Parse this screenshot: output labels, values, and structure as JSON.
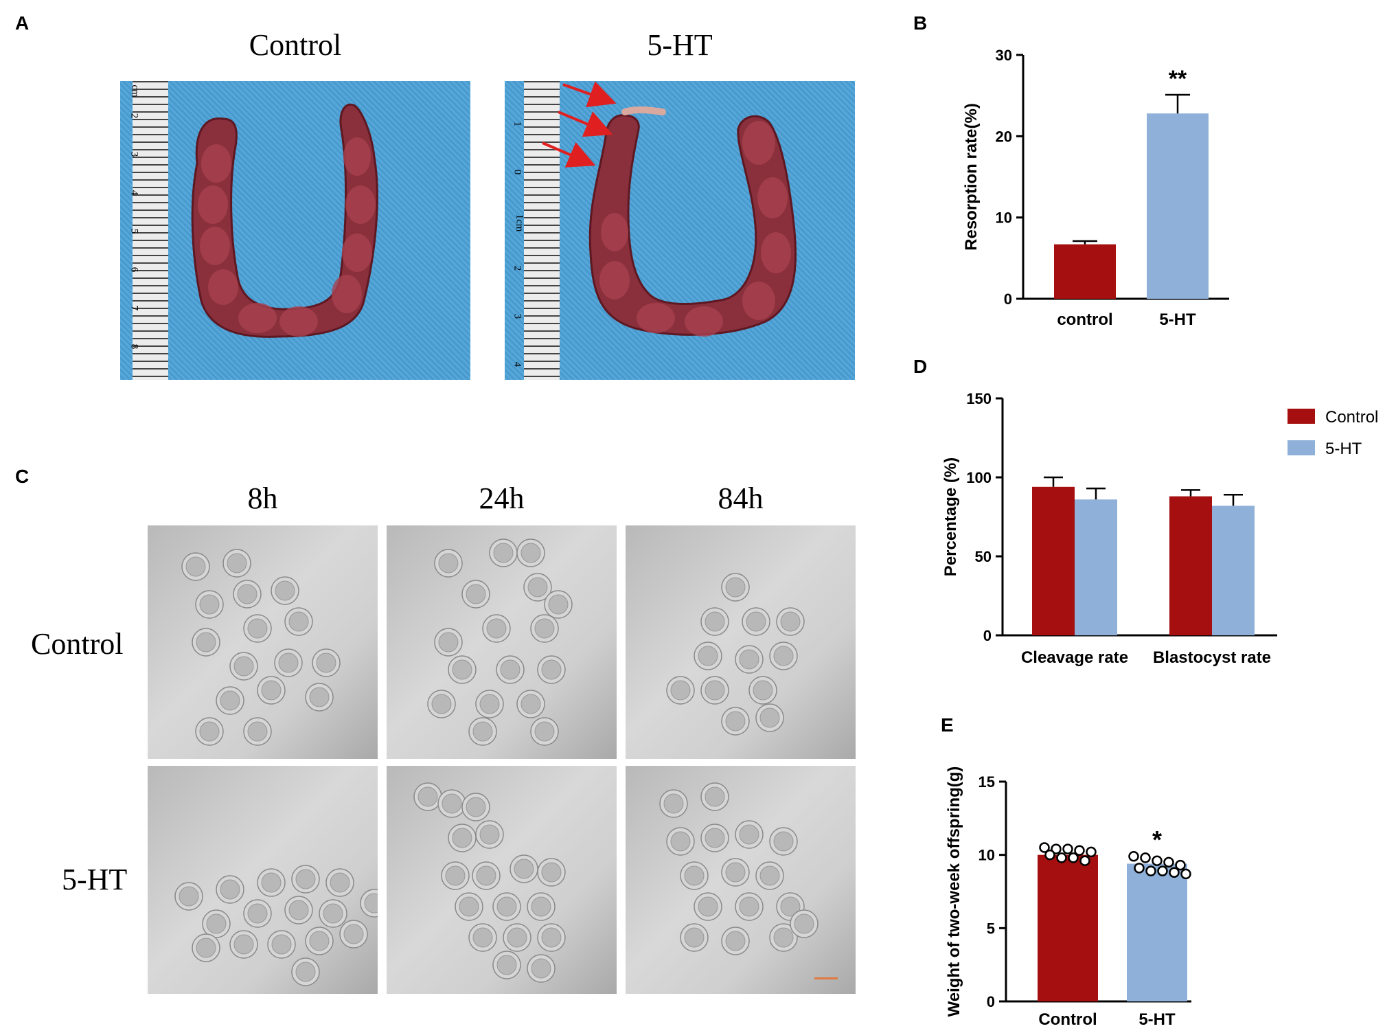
{
  "figure": {
    "panel_labels": {
      "a": "A",
      "b": "B",
      "c": "C",
      "d": "D",
      "e": "E"
    },
    "panel_a": {
      "titles": [
        "Control",
        "5-HT"
      ],
      "ruler_marks_left": [
        "cm",
        "2",
        "3",
        "4",
        "5",
        "6",
        "7",
        "8"
      ],
      "ruler_marks_right": [
        "1",
        "0",
        "1cm",
        "2",
        "3",
        "4"
      ]
    },
    "panel_c": {
      "col_titles": [
        "8h",
        "24h",
        "84h"
      ],
      "row_labels": [
        "Control",
        "5-HT"
      ]
    }
  },
  "chart_data": [
    {
      "id": "B",
      "type": "bar",
      "categories": [
        "control",
        "5-HT"
      ],
      "values": [
        6.7,
        22.8
      ],
      "errors": [
        0.4,
        2.3
      ],
      "colors": [
        "#a50f0f",
        "#8fb1d9"
      ],
      "ylabel": "Resorption rate(%)",
      "ylim": [
        0,
        30
      ],
      "yticks": [
        "0",
        "10",
        "20",
        "30"
      ],
      "annotations": [
        "",
        "**"
      ],
      "grid": false
    },
    {
      "id": "D",
      "type": "bar",
      "categories": [
        "Cleavage rate",
        "Blastocyst rate"
      ],
      "series": [
        {
          "name": "Control",
          "values": [
            94,
            88
          ],
          "errors": [
            6,
            4
          ],
          "color": "#a50f0f"
        },
        {
          "name": "5-HT",
          "values": [
            86,
            82
          ],
          "errors": [
            7,
            7
          ],
          "color": "#8fb1d9"
        }
      ],
      "ylabel": "Percentage (%)",
      "ylim": [
        0,
        150
      ],
      "yticks": [
        "0",
        "50",
        "100",
        "150"
      ],
      "legend": "top-right",
      "grid": false
    },
    {
      "id": "E",
      "type": "bar",
      "categories": [
        "Control",
        "5-HT"
      ],
      "values": [
        10.0,
        9.4
      ],
      "colors": [
        "#a50f0f",
        "#8fb1d9"
      ],
      "points": [
        [
          10.5,
          10.4,
          10.4,
          10.3,
          10.2,
          10.0,
          9.8,
          9.8,
          9.6
        ],
        [
          9.9,
          9.8,
          9.6,
          9.5,
          9.3,
          9.1,
          8.9,
          8.9,
          8.8,
          8.7
        ]
      ],
      "ylabel": "Weight of two-week offspring(g)",
      "ylim": [
        0,
        15
      ],
      "yticks": [
        "0",
        "5",
        "10",
        "15"
      ],
      "annotations": [
        "",
        "*"
      ],
      "grid": false
    }
  ]
}
